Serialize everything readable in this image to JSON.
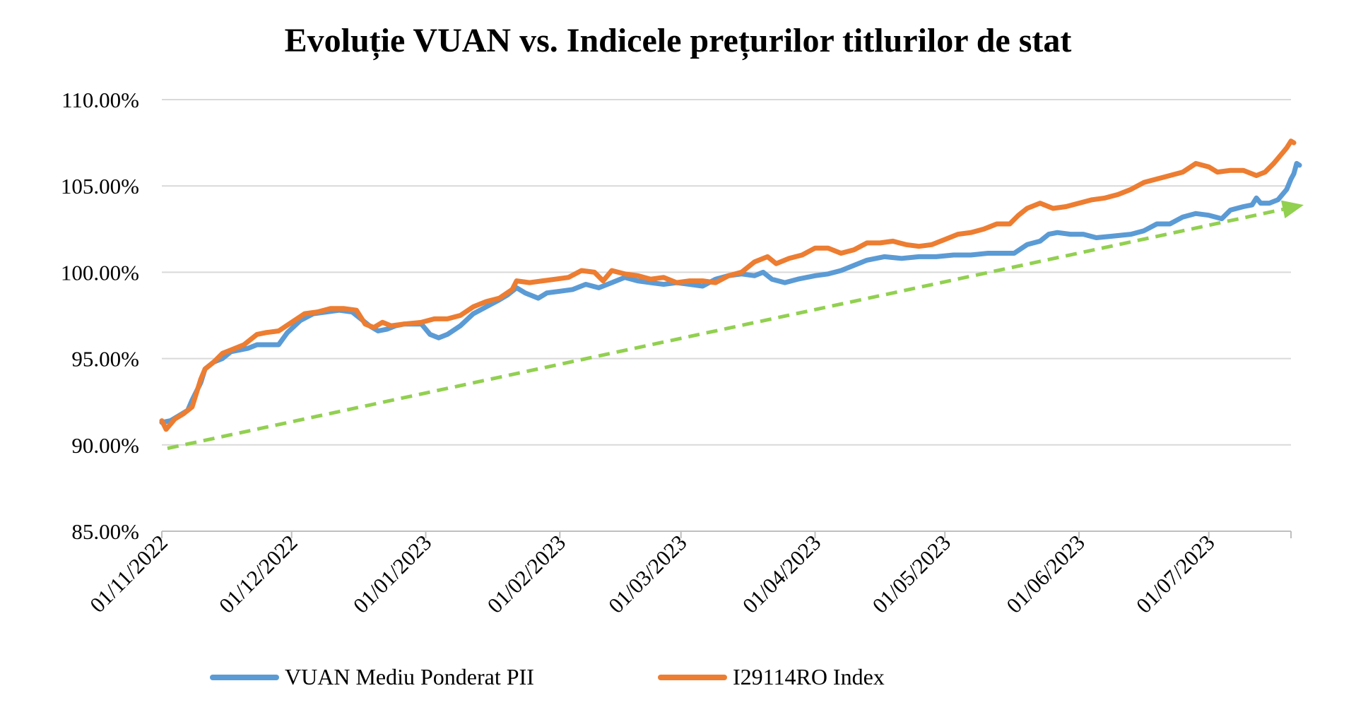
{
  "chart_data": {
    "type": "line",
    "title": "Evoluție VUAN vs. Indicele prețurilor titlurilor de stat",
    "xlabel": "",
    "ylabel": "",
    "x_start": "2022-11-01",
    "x_end": "2023-07-20",
    "x_tick_dates": [
      "2022-11-01",
      "2022-12-01",
      "2023-01-01",
      "2023-02-01",
      "2023-03-01",
      "2023-04-01",
      "2023-05-01",
      "2023-06-01",
      "2023-07-01"
    ],
    "x_tick_labels": [
      "01/11/2022",
      "01/12/2022",
      "01/01/2023",
      "01/02/2023",
      "01/03/2023",
      "01/04/2023",
      "01/05/2023",
      "01/06/2023",
      "01/07/2023"
    ],
    "y_ticks": [
      85,
      90,
      95,
      100,
      105,
      110
    ],
    "y_tick_labels": [
      "85.00%",
      "90.00%",
      "95.00%",
      "100.00%",
      "105.00%",
      "110.00%"
    ],
    "ylim": [
      85,
      110
    ],
    "grid": "horizontal",
    "legend_position": "bottom",
    "series": [
      {
        "name": "VUAN Mediu Ponderat PII",
        "color": "#5B9BD5",
        "points": [
          [
            "2022-11-01",
            91.3
          ],
          [
            "2022-11-03",
            91.4
          ],
          [
            "2022-11-05",
            91.7
          ],
          [
            "2022-11-07",
            92.0
          ],
          [
            "2022-11-08",
            92.6
          ],
          [
            "2022-11-10",
            93.6
          ],
          [
            "2022-11-11",
            94.4
          ],
          [
            "2022-11-13",
            94.8
          ],
          [
            "2022-11-15",
            95.0
          ],
          [
            "2022-11-17",
            95.4
          ],
          [
            "2022-11-19",
            95.5
          ],
          [
            "2022-11-21",
            95.6
          ],
          [
            "2022-11-23",
            95.8
          ],
          [
            "2022-11-26",
            95.8
          ],
          [
            "2022-11-28",
            95.8
          ],
          [
            "2022-11-30",
            96.5
          ],
          [
            "2022-12-03",
            97.2
          ],
          [
            "2022-12-06",
            97.6
          ],
          [
            "2022-12-09",
            97.7
          ],
          [
            "2022-12-12",
            97.8
          ],
          [
            "2022-12-15",
            97.7
          ],
          [
            "2022-12-17",
            97.3
          ],
          [
            "2022-12-19",
            96.9
          ],
          [
            "2022-12-21",
            96.6
          ],
          [
            "2022-12-23",
            96.7
          ],
          [
            "2022-12-25",
            96.9
          ],
          [
            "2022-12-27",
            97.0
          ],
          [
            "2022-12-29",
            97.0
          ],
          [
            "2022-12-31",
            97.0
          ],
          [
            "2023-01-02",
            96.4
          ],
          [
            "2023-01-04",
            96.2
          ],
          [
            "2023-01-06",
            96.4
          ],
          [
            "2023-01-09",
            96.9
          ],
          [
            "2023-01-12",
            97.6
          ],
          [
            "2023-01-15",
            98.0
          ],
          [
            "2023-01-18",
            98.4
          ],
          [
            "2023-01-20",
            98.7
          ],
          [
            "2023-01-22",
            99.1
          ],
          [
            "2023-01-24",
            98.8
          ],
          [
            "2023-01-27",
            98.5
          ],
          [
            "2023-01-29",
            98.8
          ],
          [
            "2023-02-01",
            98.9
          ],
          [
            "2023-02-04",
            99.0
          ],
          [
            "2023-02-07",
            99.3
          ],
          [
            "2023-02-10",
            99.1
          ],
          [
            "2023-02-13",
            99.4
          ],
          [
            "2023-02-16",
            99.7
          ],
          [
            "2023-02-19",
            99.5
          ],
          [
            "2023-02-22",
            99.4
          ],
          [
            "2023-02-25",
            99.3
          ],
          [
            "2023-02-28",
            99.4
          ],
          [
            "2023-03-03",
            99.3
          ],
          [
            "2023-03-06",
            99.2
          ],
          [
            "2023-03-09",
            99.6
          ],
          [
            "2023-03-12",
            99.8
          ],
          [
            "2023-03-15",
            99.9
          ],
          [
            "2023-03-18",
            99.8
          ],
          [
            "2023-03-20",
            100.0
          ],
          [
            "2023-03-22",
            99.6
          ],
          [
            "2023-03-25",
            99.4
          ],
          [
            "2023-03-28",
            99.6
          ],
          [
            "2023-04-01",
            99.8
          ],
          [
            "2023-04-04",
            99.9
          ],
          [
            "2023-04-07",
            100.1
          ],
          [
            "2023-04-10",
            100.4
          ],
          [
            "2023-04-13",
            100.7
          ],
          [
            "2023-04-17",
            100.9
          ],
          [
            "2023-04-21",
            100.8
          ],
          [
            "2023-04-25",
            100.9
          ],
          [
            "2023-04-29",
            100.9
          ],
          [
            "2023-05-03",
            101.0
          ],
          [
            "2023-05-07",
            101.0
          ],
          [
            "2023-05-11",
            101.1
          ],
          [
            "2023-05-14",
            101.1
          ],
          [
            "2023-05-17",
            101.1
          ],
          [
            "2023-05-20",
            101.6
          ],
          [
            "2023-05-23",
            101.8
          ],
          [
            "2023-05-25",
            102.2
          ],
          [
            "2023-05-27",
            102.3
          ],
          [
            "2023-05-30",
            102.2
          ],
          [
            "2023-06-02",
            102.2
          ],
          [
            "2023-06-05",
            102.0
          ],
          [
            "2023-06-09",
            102.1
          ],
          [
            "2023-06-13",
            102.2
          ],
          [
            "2023-06-16",
            102.4
          ],
          [
            "2023-06-19",
            102.8
          ],
          [
            "2023-06-22",
            102.8
          ],
          [
            "2023-06-25",
            103.2
          ],
          [
            "2023-06-28",
            103.4
          ],
          [
            "2023-07-01",
            103.3
          ],
          [
            "2023-07-04",
            103.1
          ],
          [
            "2023-07-06",
            103.6
          ],
          [
            "2023-07-09",
            103.8
          ],
          [
            "2023-07-11",
            103.9
          ],
          [
            "2023-07-12",
            104.3
          ],
          [
            "2023-07-13",
            104.0
          ],
          [
            "2023-07-15",
            104.0
          ],
          [
            "2023-07-17",
            104.2
          ],
          [
            "2023-07-19",
            104.8
          ],
          [
            "2023-07-20",
            105.4
          ],
          [
            "2023-07-20",
            105.7
          ],
          [
            "2023-07-20",
            106.3
          ],
          [
            "2023-07-20",
            106.2
          ]
        ]
      },
      {
        "name": "I29114RO Index",
        "color": "#ED7D31",
        "points": [
          [
            "2022-11-01",
            91.4
          ],
          [
            "2022-11-02",
            90.9
          ],
          [
            "2022-11-04",
            91.5
          ],
          [
            "2022-11-06",
            91.8
          ],
          [
            "2022-11-08",
            92.2
          ],
          [
            "2022-11-10",
            93.8
          ],
          [
            "2022-11-11",
            94.4
          ],
          [
            "2022-11-13",
            94.8
          ],
          [
            "2022-11-15",
            95.3
          ],
          [
            "2022-11-17",
            95.5
          ],
          [
            "2022-11-20",
            95.8
          ],
          [
            "2022-11-23",
            96.4
          ],
          [
            "2022-11-25",
            96.5
          ],
          [
            "2022-11-28",
            96.6
          ],
          [
            "2022-12-01",
            97.1
          ],
          [
            "2022-12-04",
            97.6
          ],
          [
            "2022-12-07",
            97.7
          ],
          [
            "2022-12-10",
            97.9
          ],
          [
            "2022-12-13",
            97.9
          ],
          [
            "2022-12-16",
            97.8
          ],
          [
            "2022-12-18",
            97.0
          ],
          [
            "2022-12-20",
            96.8
          ],
          [
            "2022-12-22",
            97.1
          ],
          [
            "2022-12-24",
            96.9
          ],
          [
            "2022-12-27",
            97.0
          ],
          [
            "2022-12-31",
            97.1
          ],
          [
            "2023-01-03",
            97.3
          ],
          [
            "2023-01-06",
            97.3
          ],
          [
            "2023-01-09",
            97.5
          ],
          [
            "2023-01-12",
            98.0
          ],
          [
            "2023-01-15",
            98.3
          ],
          [
            "2023-01-18",
            98.5
          ],
          [
            "2023-01-21",
            99.0
          ],
          [
            "2023-01-22",
            99.5
          ],
          [
            "2023-01-25",
            99.4
          ],
          [
            "2023-01-28",
            99.5
          ],
          [
            "2023-01-31",
            99.6
          ],
          [
            "2023-02-03",
            99.7
          ],
          [
            "2023-02-06",
            100.1
          ],
          [
            "2023-02-09",
            100.0
          ],
          [
            "2023-02-11",
            99.5
          ],
          [
            "2023-02-13",
            100.1
          ],
          [
            "2023-02-16",
            99.9
          ],
          [
            "2023-02-19",
            99.8
          ],
          [
            "2023-02-22",
            99.6
          ],
          [
            "2023-02-25",
            99.7
          ],
          [
            "2023-02-28",
            99.4
          ],
          [
            "2023-03-03",
            99.5
          ],
          [
            "2023-03-06",
            99.5
          ],
          [
            "2023-03-09",
            99.4
          ],
          [
            "2023-03-12",
            99.8
          ],
          [
            "2023-03-15",
            100.0
          ],
          [
            "2023-03-18",
            100.6
          ],
          [
            "2023-03-21",
            100.9
          ],
          [
            "2023-03-23",
            100.5
          ],
          [
            "2023-03-26",
            100.8
          ],
          [
            "2023-03-29",
            101.0
          ],
          [
            "2023-04-01",
            101.4
          ],
          [
            "2023-04-04",
            101.4
          ],
          [
            "2023-04-07",
            101.1
          ],
          [
            "2023-04-10",
            101.3
          ],
          [
            "2023-04-13",
            101.7
          ],
          [
            "2023-04-16",
            101.7
          ],
          [
            "2023-04-19",
            101.8
          ],
          [
            "2023-04-22",
            101.6
          ],
          [
            "2023-04-25",
            101.5
          ],
          [
            "2023-04-28",
            101.6
          ],
          [
            "2023-05-01",
            101.9
          ],
          [
            "2023-05-04",
            102.2
          ],
          [
            "2023-05-07",
            102.3
          ],
          [
            "2023-05-10",
            102.5
          ],
          [
            "2023-05-13",
            102.8
          ],
          [
            "2023-05-16",
            102.8
          ],
          [
            "2023-05-18",
            103.3
          ],
          [
            "2023-05-20",
            103.7
          ],
          [
            "2023-05-23",
            104.0
          ],
          [
            "2023-05-26",
            103.7
          ],
          [
            "2023-05-29",
            103.8
          ],
          [
            "2023-06-01",
            104.0
          ],
          [
            "2023-06-04",
            104.2
          ],
          [
            "2023-06-07",
            104.3
          ],
          [
            "2023-06-10",
            104.5
          ],
          [
            "2023-06-13",
            104.8
          ],
          [
            "2023-06-16",
            105.2
          ],
          [
            "2023-06-19",
            105.4
          ],
          [
            "2023-06-22",
            105.6
          ],
          [
            "2023-06-25",
            105.8
          ],
          [
            "2023-06-28",
            106.3
          ],
          [
            "2023-07-01",
            106.1
          ],
          [
            "2023-07-03",
            105.8
          ],
          [
            "2023-07-06",
            105.9
          ],
          [
            "2023-07-09",
            105.9
          ],
          [
            "2023-07-12",
            105.6
          ],
          [
            "2023-07-14",
            105.8
          ],
          [
            "2023-07-16",
            106.3
          ],
          [
            "2023-07-18",
            106.9
          ],
          [
            "2023-07-19",
            107.2
          ],
          [
            "2023-07-20",
            107.6
          ],
          [
            "2023-07-20",
            107.5
          ]
        ]
      }
    ],
    "annotations": [
      {
        "type": "dashed-trend-arrow",
        "color": "#92D050",
        "start": [
          "2022-11-01",
          89.8
        ],
        "end": [
          "2023-07-20",
          103.9
        ]
      }
    ]
  }
}
